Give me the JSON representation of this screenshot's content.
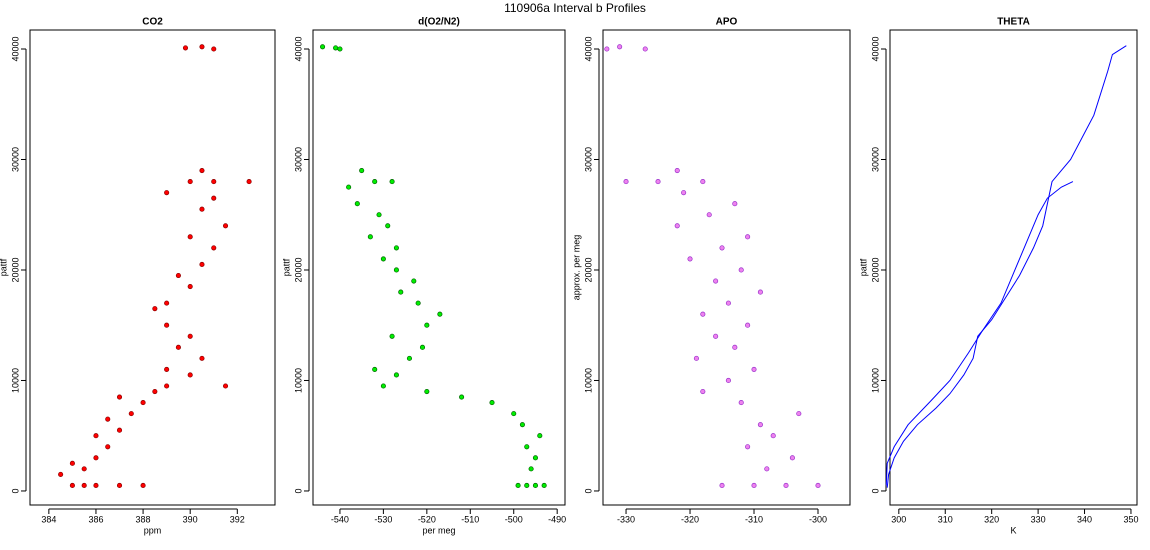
{
  "title": "110906a   Interval b Profiles",
  "chart_data": [
    {
      "type": "scatter",
      "title": "CO2",
      "xlabel": "ppm",
      "ylabel": "pattf",
      "color": "#ff0000",
      "edgecolor": "#8b0000",
      "xlim": [
        383.2,
        393.6
      ],
      "xticks": [
        384,
        386,
        388,
        390,
        392
      ],
      "ylim": [
        -1270,
        41720
      ],
      "yticks": [
        0,
        10000,
        20000,
        30000,
        40000
      ],
      "x": [
        385.5,
        386,
        387,
        385,
        388,
        384.5,
        385.5,
        386,
        385,
        386.5,
        386,
        387,
        386.5,
        387.5,
        388,
        387,
        388.5,
        389,
        391.5,
        390,
        389,
        390.5,
        389.5,
        390,
        389,
        388.5,
        389,
        390,
        389.5,
        390.5,
        391,
        390,
        391.5,
        390.5,
        391,
        389,
        390,
        391,
        392.5,
        390.5,
        390.5,
        389.8,
        391
      ],
      "values": [
        500,
        500,
        500,
        500,
        500,
        1500,
        2000,
        3000,
        2500,
        4000,
        5000,
        5500,
        6500,
        7000,
        8000,
        8500,
        9000,
        9500,
        9500,
        10500,
        11000,
        12000,
        13000,
        14000,
        15000,
        16500,
        17000,
        18500,
        19500,
        20500,
        22000,
        23000,
        24000,
        25500,
        26500,
        27000,
        28000,
        28000,
        28000,
        29000,
        40200,
        40100,
        40000
      ]
    },
    {
      "type": "scatter",
      "title": "d(O2/N2)",
      "xlabel": "per meg",
      "ylabel": "pattf",
      "color": "#00ee00",
      "edgecolor": "#006400",
      "xlim": [
        -546.2,
        -488.2
      ],
      "xticks": [
        -540,
        -530,
        -520,
        -510,
        -500,
        -490
      ],
      "ylim": [
        -1270,
        41720
      ],
      "yticks": [
        0,
        10000,
        20000,
        30000,
        40000
      ],
      "x": [
        -497,
        -495,
        -493,
        -499,
        -496,
        -495,
        -497,
        -494,
        -498,
        -500,
        -505,
        -512,
        -520,
        -530,
        -527,
        -532,
        -524,
        -521,
        -528,
        -520,
        -517,
        -522,
        -526,
        -523,
        -527,
        -530,
        -527,
        -533,
        -529,
        -531,
        -536,
        -538,
        -532,
        -528,
        -535,
        -540,
        -544,
        -541
      ],
      "values": [
        500,
        500,
        500,
        500,
        2000,
        3000,
        4000,
        5000,
        6000,
        7000,
        8000,
        8500,
        9000,
        9500,
        10500,
        11000,
        12000,
        13000,
        14000,
        15000,
        16000,
        17000,
        18000,
        19000,
        20000,
        21000,
        22000,
        23000,
        24000,
        25000,
        26000,
        27500,
        28000,
        28000,
        29000,
        40000,
        40200,
        40100
      ]
    },
    {
      "type": "scatter",
      "title": "APO",
      "xlabel": "",
      "ylabel": "approx. per meg",
      "color": "#ee82ee",
      "edgecolor": "#9932cc",
      "xlim": [
        -333.6,
        -295
      ],
      "xticks": [
        -330,
        -320,
        -310,
        -300
      ],
      "ylim": [
        -1270,
        41720
      ],
      "yticks": [
        0,
        10000,
        20000,
        30000,
        40000
      ],
      "x": [
        -310,
        -305,
        -315,
        -300,
        -308,
        -304,
        -311,
        -307,
        -309,
        -303,
        -312,
        -318,
        -314,
        -310,
        -319,
        -313,
        -316,
        -311,
        -318,
        -314,
        -309,
        -316,
        -312,
        -320,
        -315,
        -311,
        -322,
        -317,
        -313,
        -321,
        -325,
        -318,
        -330,
        -322,
        -331,
        -327,
        -333
      ],
      "values": [
        500,
        500,
        500,
        500,
        2000,
        3000,
        4000,
        5000,
        6000,
        7000,
        8000,
        9000,
        10000,
        11000,
        12000,
        13000,
        14000,
        15000,
        16000,
        17000,
        18000,
        19000,
        20000,
        21000,
        22000,
        23000,
        24000,
        25000,
        26000,
        27000,
        28000,
        28000,
        28000,
        29000,
        40200,
        40000,
        40000
      ]
    },
    {
      "type": "line",
      "title": "THETA",
      "xlabel": "K",
      "ylabel": "pattf",
      "color": "#0000ff",
      "xlim": [
        298.1,
        351.3
      ],
      "xticks": [
        300,
        310,
        320,
        330,
        340,
        350
      ],
      "ylim": [
        -1270,
        41720
      ],
      "yticks": [
        0,
        10000,
        20000,
        30000,
        40000
      ],
      "x": [
        297.5,
        297.8,
        299,
        301,
        304,
        308,
        311,
        314,
        316,
        317,
        320,
        323,
        326,
        329,
        331,
        333,
        337,
        342,
        345,
        346,
        349,
        null,
        337.5,
        335,
        332,
        330,
        328,
        325,
        322,
        318,
        315,
        311,
        307,
        302,
        299,
        297.5,
        297.3
      ],
      "values": [
        300,
        1500,
        3000,
        4500,
        6000,
        7500,
        8800,
        10500,
        12000,
        14000,
        15500,
        17500,
        19500,
        22000,
        24000,
        28000,
        30000,
        34000,
        38000,
        39500,
        40300,
        null,
        28000,
        27500,
        26500,
        25000,
        23000,
        20000,
        17000,
        14500,
        12500,
        10000,
        8200,
        6000,
        4000,
        2500,
        500
      ]
    }
  ]
}
